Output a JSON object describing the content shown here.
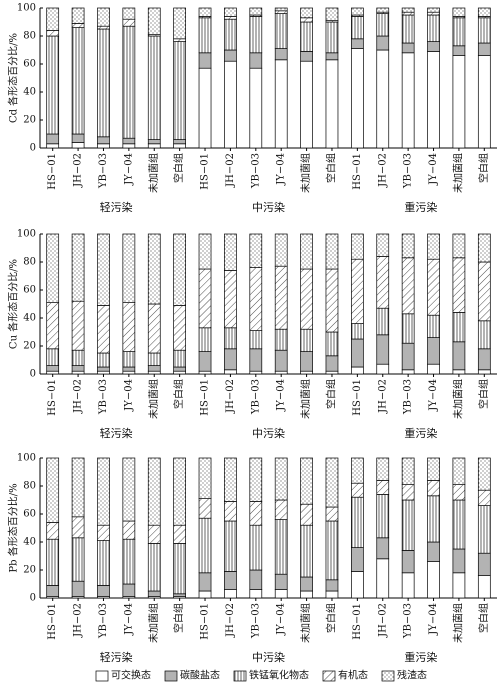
{
  "chart_data": [
    {
      "type": "stacked_bar",
      "ylabel": "Cd 各形态百分比/%",
      "categories": [
        "HS−01",
        "JH−02",
        "YB−03",
        "JY−04",
        "未加菌组",
        "空白组",
        "HS−01",
        "JH−02",
        "YB−03",
        "JY−04",
        "未加菌组",
        "空白组",
        "HS−01",
        "JH−02",
        "YB−03",
        "JY−04",
        "未加菌组",
        "空白组"
      ],
      "groups": [
        "轻污染",
        "中污染",
        "重污染"
      ],
      "ylim": [
        0,
        100
      ],
      "yticks": [
        0,
        20,
        40,
        60,
        80,
        100
      ],
      "series": [
        {
          "name": "可交换态",
          "pattern": "none",
          "values": [
            3,
            4,
            3,
            3,
            3,
            3,
            57,
            62,
            57,
            63,
            62,
            63,
            71,
            70,
            68,
            69,
            66,
            66
          ]
        },
        {
          "name": "碳酸盐态",
          "pattern": "gray",
          "values": [
            7,
            6,
            5,
            4,
            3,
            3,
            11,
            8,
            11,
            8,
            7,
            5,
            7,
            10,
            7,
            7,
            7,
            9
          ]
        },
        {
          "name": "铁锰氧化物态",
          "pattern": "vertical",
          "values": [
            70,
            76,
            77,
            80,
            74,
            70,
            25,
            22,
            26,
            25,
            21,
            22,
            16,
            16,
            20,
            19,
            20,
            18
          ]
        },
        {
          "name": "有机态",
          "pattern": "diagonal",
          "values": [
            4,
            3,
            2,
            5,
            1,
            2,
            1,
            2,
            1,
            2,
            3,
            1,
            1,
            1,
            2,
            2,
            1,
            1
          ]
        },
        {
          "name": "残渣态",
          "pattern": "dots",
          "values": [
            16,
            11,
            13,
            8,
            19,
            22,
            6,
            6,
            5,
            2,
            7,
            9,
            5,
            3,
            3,
            3,
            6,
            6
          ]
        }
      ]
    },
    {
      "type": "stacked_bar",
      "ylabel": "Cu 各形态百分比/%",
      "categories": [
        "HS−01",
        "JH−02",
        "YB−03",
        "JY−04",
        "未加菌组",
        "空白组",
        "HS−01",
        "JH−02",
        "YB−03",
        "JY−04",
        "未加菌组",
        "空白组",
        "HS−01",
        "JH−02",
        "YB−03",
        "JY−04",
        "未加菌组",
        "空白组"
      ],
      "groups": [
        "轻污染",
        "中污染",
        "重污染"
      ],
      "ylim": [
        0,
        100
      ],
      "yticks": [
        0,
        20,
        40,
        60,
        80,
        100
      ],
      "series": [
        {
          "values": [
            2,
            2,
            2,
            2,
            2,
            2,
            2,
            3,
            2,
            2,
            2,
            2,
            5,
            7,
            3,
            7,
            3,
            3
          ]
        },
        {
          "values": [
            4,
            4,
            3,
            3,
            4,
            3,
            14,
            15,
            16,
            15,
            14,
            11,
            20,
            21,
            19,
            19,
            20,
            15
          ]
        },
        {
          "values": [
            12,
            11,
            10,
            11,
            9,
            12,
            17,
            15,
            13,
            15,
            16,
            17,
            11,
            19,
            21,
            16,
            21,
            20
          ]
        },
        {
          "values": [
            33,
            35,
            34,
            35,
            35,
            32,
            42,
            41,
            45,
            45,
            43,
            45,
            46,
            37,
            40,
            40,
            39,
            42
          ]
        },
        {
          "values": [
            49,
            48,
            51,
            49,
            50,
            51,
            25,
            26,
            24,
            23,
            25,
            25,
            18,
            16,
            17,
            18,
            17,
            20
          ]
        }
      ]
    },
    {
      "type": "stacked_bar",
      "ylabel": "Pb 各形态百分比/%",
      "categories": [
        "HS−01",
        "JH−02",
        "YB−03",
        "JY−04",
        "未加菌组",
        "空白组",
        "HS−01",
        "JH−02",
        "YB−03",
        "JY−04",
        "未加菌组",
        "空白组",
        "HS−01",
        "JH−02",
        "YB−03",
        "JY−04",
        "未加菌组",
        "空白组"
      ],
      "groups": [
        "轻污染",
        "中污染",
        "重污染"
      ],
      "ylim": [
        0,
        100
      ],
      "yticks": [
        0,
        20,
        40,
        60,
        80,
        100
      ],
      "series": [
        {
          "values": [
            1,
            1,
            1,
            1,
            1,
            1,
            5,
            6,
            6,
            6,
            5,
            5,
            19,
            28,
            18,
            26,
            18,
            16
          ]
        },
        {
          "values": [
            8,
            11,
            8,
            9,
            4,
            2,
            13,
            13,
            14,
            11,
            10,
            8,
            17,
            15,
            16,
            14,
            17,
            16
          ]
        },
        {
          "values": [
            33,
            31,
            32,
            32,
            34,
            36,
            39,
            36,
            32,
            39,
            37,
            42,
            36,
            31,
            36,
            33,
            35,
            34
          ]
        },
        {
          "values": [
            12,
            15,
            11,
            13,
            13,
            13,
            14,
            14,
            17,
            14,
            15,
            10,
            10,
            10,
            11,
            11,
            11,
            11
          ]
        },
        {
          "values": [
            46,
            42,
            48,
            45,
            48,
            48,
            29,
            31,
            31,
            30,
            33,
            35,
            18,
            16,
            19,
            16,
            19,
            23
          ]
        }
      ]
    }
  ]
}
